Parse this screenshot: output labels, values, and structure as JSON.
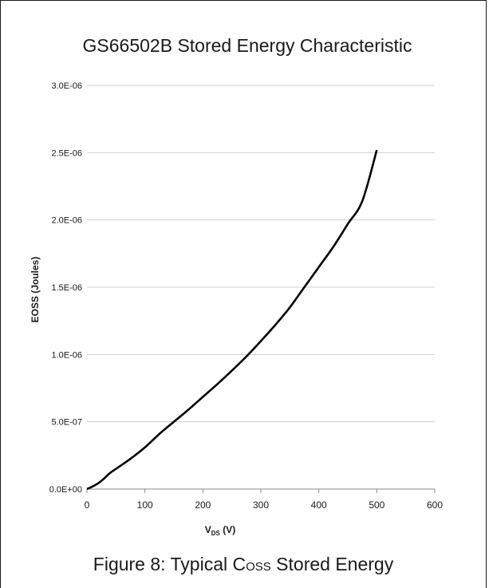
{
  "chart_data": {
    "type": "line",
    "title": "GS66502B Stored Energy Characteristic",
    "xlabel_main": "V",
    "xlabel_sub": "DS",
    "xlabel_unit": " (V)",
    "ylabel": "EOSS (Joules)",
    "xlim": [
      0,
      600
    ],
    "ylim": [
      0,
      3e-06
    ],
    "x_ticks": [
      0,
      100,
      200,
      300,
      400,
      500,
      600
    ],
    "x_tick_labels": [
      "0",
      "100",
      "200",
      "300",
      "400",
      "500",
      "600"
    ],
    "y_ticks": [
      0,
      5e-07,
      1e-06,
      1.5e-06,
      2e-06,
      2.5e-06,
      3e-06
    ],
    "y_tick_labels": [
      "0.0E+00",
      "5.0E-07",
      "1.0E-06",
      "1.5E-06",
      "2.0E-06",
      "2.5E-06",
      "3.0E-06"
    ],
    "grid": true,
    "series": [
      {
        "color": "#000000",
        "x": [
          0,
          10,
          20,
          30,
          40,
          50,
          75,
          100,
          125,
          150,
          175,
          200,
          225,
          250,
          275,
          300,
          325,
          350,
          375,
          400,
          425,
          450,
          475,
          500
        ],
        "y": [
          0,
          2e-08,
          4.5e-08,
          8e-08,
          1.2e-07,
          1.5e-07,
          2.25e-07,
          3.1e-07,
          4.1e-07,
          5e-07,
          5.9e-07,
          6.85e-07,
          7.8e-07,
          8.8e-07,
          9.85e-07,
          1.1e-06,
          1.22e-06,
          1.35e-06,
          1.5e-06,
          1.65e-06,
          1.8e-06,
          1.97e-06,
          2.14e-06,
          2.52e-06
        ]
      }
    ]
  },
  "caption": {
    "prefix": "Figure 8: Typical C",
    "sub": "OSS",
    "suffix": " Stored Energy"
  }
}
